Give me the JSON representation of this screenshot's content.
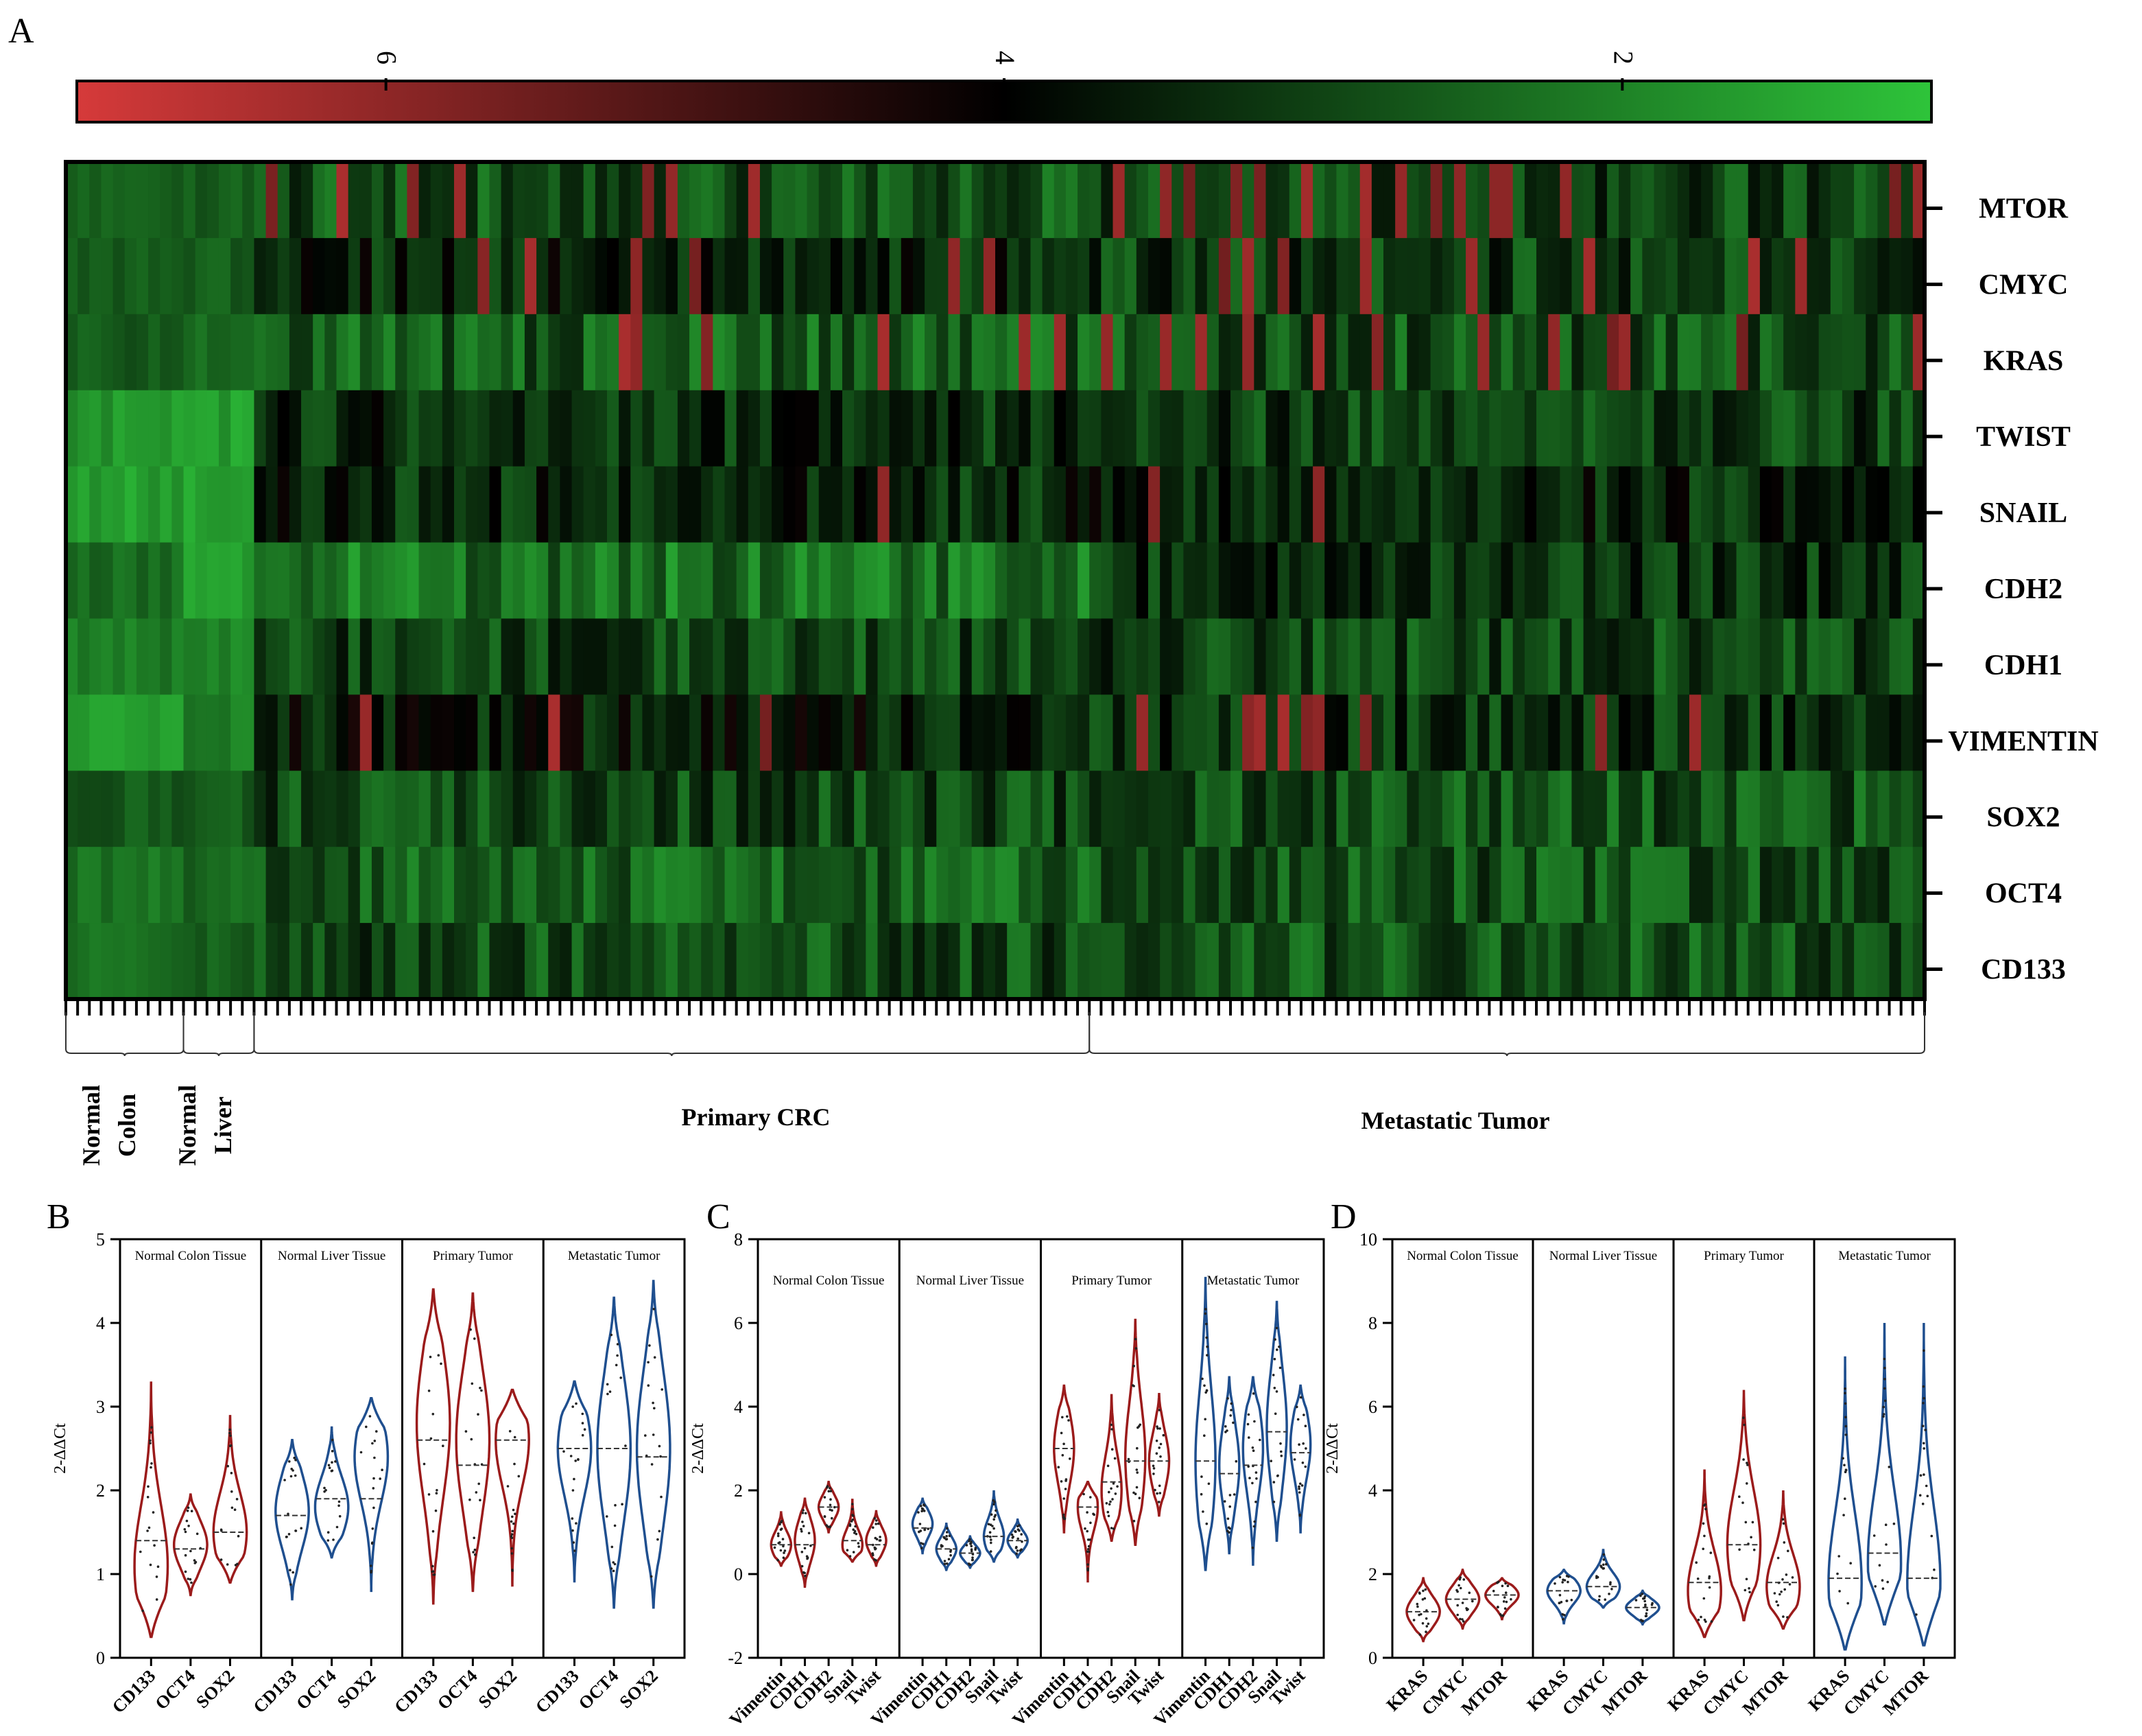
{
  "figure": {
    "panel_letters": [
      "A",
      "B",
      "C",
      "D"
    ]
  },
  "colors": {
    "red_high": "#d63a3a",
    "black_mid": "#000000",
    "green_low": "#2ec43a",
    "violin_red": "#9b1b1b",
    "violin_blue": "#1f4f8f"
  },
  "chart_data": [
    {
      "type": "heatmap",
      "panel": "A",
      "colorbar": {
        "ticks": [
          "6",
          "4",
          "2"
        ],
        "values": [
          6,
          4,
          2
        ],
        "range": [
          7,
          1
        ],
        "colors": [
          "#d63a3a",
          "#000000",
          "#2ec43a"
        ]
      },
      "rows": [
        "MTOR",
        "CMYC",
        "KRAS",
        "TWIST",
        "SNAIL",
        "CDH2",
        "CDH1",
        "VIMENTIN",
        "SOX2",
        "OCT4",
        "CD133"
      ],
      "groups": [
        {
          "label_lines": [
            "Normal",
            "Colon"
          ],
          "n": 10
        },
        {
          "label_lines": [
            "Normal",
            "Liver"
          ],
          "n": 6
        },
        {
          "label_lines": [
            "Primary CRC"
          ],
          "n": 71
        },
        {
          "label_lines": [
            "Metastatic Tumor"
          ],
          "n": 71
        }
      ],
      "cell_values": "approximate; generated procedurally from row/group expression levels in the range 1–7 (low = green, ~4 = black, high = red)"
    },
    {
      "type": "violin",
      "panel": "B",
      "ylabel": "2-ΔΔCt",
      "ylim": [
        0,
        5
      ],
      "yticks": [
        0,
        1,
        2,
        3,
        4,
        5
      ],
      "groups": [
        {
          "title": "Normal Colon Tissue",
          "color": "red",
          "categories": [
            "CD133",
            "OCT4",
            "SOX2"
          ],
          "violins": [
            {
              "min": 0.25,
              "max": 3.3,
              "median": 1.4,
              "mode": 1.1
            },
            {
              "min": 0.75,
              "max": 1.95,
              "median": 1.3,
              "mode": 1.35
            },
            {
              "min": 0.9,
              "max": 2.9,
              "median": 1.5,
              "mode": 1.5
            }
          ]
        },
        {
          "title": "Normal Liver Tissue",
          "color": "blue",
          "categories": [
            "CD133",
            "OCT4",
            "SOX2"
          ],
          "violins": [
            {
              "min": 0.7,
              "max": 2.6,
              "median": 1.7,
              "mode": 1.75
            },
            {
              "min": 1.2,
              "max": 2.75,
              "median": 1.9,
              "mode": 1.8
            },
            {
              "min": 0.8,
              "max": 3.1,
              "median": 1.9,
              "mode": 2.4
            }
          ]
        },
        {
          "title": "Primary Tumor",
          "color": "red",
          "categories": [
            "CD133",
            "OCT4",
            "SOX2"
          ],
          "violins": [
            {
              "min": 0.65,
              "max": 4.4,
              "median": 2.6,
              "mode": 2.8
            },
            {
              "min": 0.8,
              "max": 4.35,
              "median": 2.3,
              "mode": 2.6
            },
            {
              "min": 0.85,
              "max": 3.2,
              "median": 2.6,
              "mode": 2.6
            }
          ]
        },
        {
          "title": "Metastatic Tumor",
          "color": "blue",
          "categories": [
            "CD133",
            "OCT4",
            "SOX2"
          ],
          "violins": [
            {
              "min": 0.9,
              "max": 3.3,
              "median": 2.5,
              "mode": 2.5
            },
            {
              "min": 0.6,
              "max": 4.3,
              "median": 2.5,
              "mode": 2.5
            },
            {
              "min": 0.6,
              "max": 4.5,
              "median": 2.4,
              "mode": 2.5
            }
          ]
        }
      ]
    },
    {
      "type": "violin",
      "panel": "C",
      "ylabel": "2-ΔΔCt",
      "ylim": [
        -2,
        8
      ],
      "yticks": [
        -2,
        0,
        2,
        4,
        6,
        8
      ],
      "groups": [
        {
          "title": "Normal Colon Tissue",
          "color": "red",
          "categories": [
            "Vimentin",
            "CDH1",
            "CDH2",
            "Snail",
            "Twist"
          ],
          "violins": [
            {
              "min": 0.2,
              "max": 1.5,
              "median": 0.7,
              "mode": 0.7
            },
            {
              "min": -0.3,
              "max": 1.8,
              "median": 0.7,
              "mode": 0.8
            },
            {
              "min": 1.0,
              "max": 2.2,
              "median": 1.6,
              "mode": 1.6
            },
            {
              "min": 0.3,
              "max": 1.8,
              "median": 0.8,
              "mode": 0.7
            },
            {
              "min": 0.2,
              "max": 1.5,
              "median": 0.7,
              "mode": 0.8
            }
          ]
        },
        {
          "title": "Normal Liver Tissue",
          "color": "blue",
          "categories": [
            "Vimentin",
            "CDH1",
            "CDH2",
            "Snail",
            "Twist"
          ],
          "violins": [
            {
              "min": 0.5,
              "max": 1.8,
              "median": 1.1,
              "mode": 1.2
            },
            {
              "min": 0.1,
              "max": 1.2,
              "median": 0.6,
              "mode": 0.6
            },
            {
              "min": 0.15,
              "max": 0.9,
              "median": 0.5,
              "mode": 0.5
            },
            {
              "min": 0.3,
              "max": 2.0,
              "median": 0.9,
              "mode": 0.9
            },
            {
              "min": 0.4,
              "max": 1.3,
              "median": 0.8,
              "mode": 0.8
            }
          ]
        },
        {
          "title": "Primary Tumor",
          "color": "red",
          "categories": [
            "Vimentin",
            "CDH1",
            "CDH2",
            "Snail",
            "Twist"
          ],
          "violins": [
            {
              "min": 1.0,
              "max": 4.5,
              "median": 3.0,
              "mode": 3.0
            },
            {
              "min": -0.2,
              "max": 2.2,
              "median": 1.6,
              "mode": 1.6
            },
            {
              "min": 0.8,
              "max": 4.3,
              "median": 2.2,
              "mode": 2.0
            },
            {
              "min": 0.7,
              "max": 6.1,
              "median": 2.7,
              "mode": 2.8
            },
            {
              "min": 1.4,
              "max": 4.3,
              "median": 2.7,
              "mode": 2.7
            }
          ]
        },
        {
          "title": "Metastatic Tumor",
          "color": "blue",
          "categories": [
            "Vimentin",
            "CDH1",
            "CDH2",
            "Snail",
            "Twist"
          ],
          "violins": [
            {
              "min": 0.1,
              "max": 7.1,
              "median": 2.7,
              "mode": 2.7
            },
            {
              "min": 0.5,
              "max": 4.7,
              "median": 2.4,
              "mode": 2.6
            },
            {
              "min": 0.2,
              "max": 4.7,
              "median": 2.6,
              "mode": 3.0
            },
            {
              "min": 0.8,
              "max": 6.5,
              "median": 3.4,
              "mode": 3.5
            },
            {
              "min": 1.0,
              "max": 4.5,
              "median": 2.9,
              "mode": 3.1
            }
          ]
        }
      ]
    },
    {
      "type": "violin",
      "panel": "D",
      "ylabel": "2-ΔΔCt",
      "ylim": [
        0,
        10
      ],
      "yticks": [
        0,
        2,
        4,
        6,
        8,
        10
      ],
      "groups": [
        {
          "title": "Normal Colon Tissue",
          "color": "red",
          "categories": [
            "KRAS",
            "CMYC",
            "MTOR"
          ],
          "violins": [
            {
              "min": 0.4,
              "max": 1.9,
              "median": 1.1,
              "mode": 1.1
            },
            {
              "min": 0.7,
              "max": 2.1,
              "median": 1.4,
              "mode": 1.4
            },
            {
              "min": 0.9,
              "max": 1.9,
              "median": 1.5,
              "mode": 1.5
            }
          ]
        },
        {
          "title": "Normal Liver Tissue",
          "color": "blue",
          "categories": [
            "KRAS",
            "CMYC",
            "MTOR"
          ],
          "violins": [
            {
              "min": 0.8,
              "max": 2.1,
              "median": 1.6,
              "mode": 1.6
            },
            {
              "min": 1.2,
              "max": 2.6,
              "median": 1.7,
              "mode": 1.7
            },
            {
              "min": 0.8,
              "max": 1.6,
              "median": 1.2,
              "mode": 1.2
            }
          ]
        },
        {
          "title": "Primary Tumor",
          "color": "red",
          "categories": [
            "KRAS",
            "CMYC",
            "MTOR"
          ],
          "violins": [
            {
              "min": 0.5,
              "max": 4.5,
              "median": 1.8,
              "mode": 1.6
            },
            {
              "min": 0.9,
              "max": 6.4,
              "median": 2.7,
              "mode": 2.7
            },
            {
              "min": 0.7,
              "max": 4.0,
              "median": 1.8,
              "mode": 1.7
            }
          ]
        },
        {
          "title": "Metastatic Tumor",
          "color": "blue",
          "categories": [
            "KRAS",
            "CMYC",
            "MTOR"
          ],
          "violins": [
            {
              "min": 0.2,
              "max": 7.2,
              "median": 1.9,
              "mode": 1.8
            },
            {
              "min": 0.8,
              "max": 8.0,
              "median": 2.5,
              "mode": 2.3
            },
            {
              "min": 0.3,
              "max": 8.0,
              "median": 1.9,
              "mode": 1.8
            }
          ]
        }
      ]
    }
  ]
}
